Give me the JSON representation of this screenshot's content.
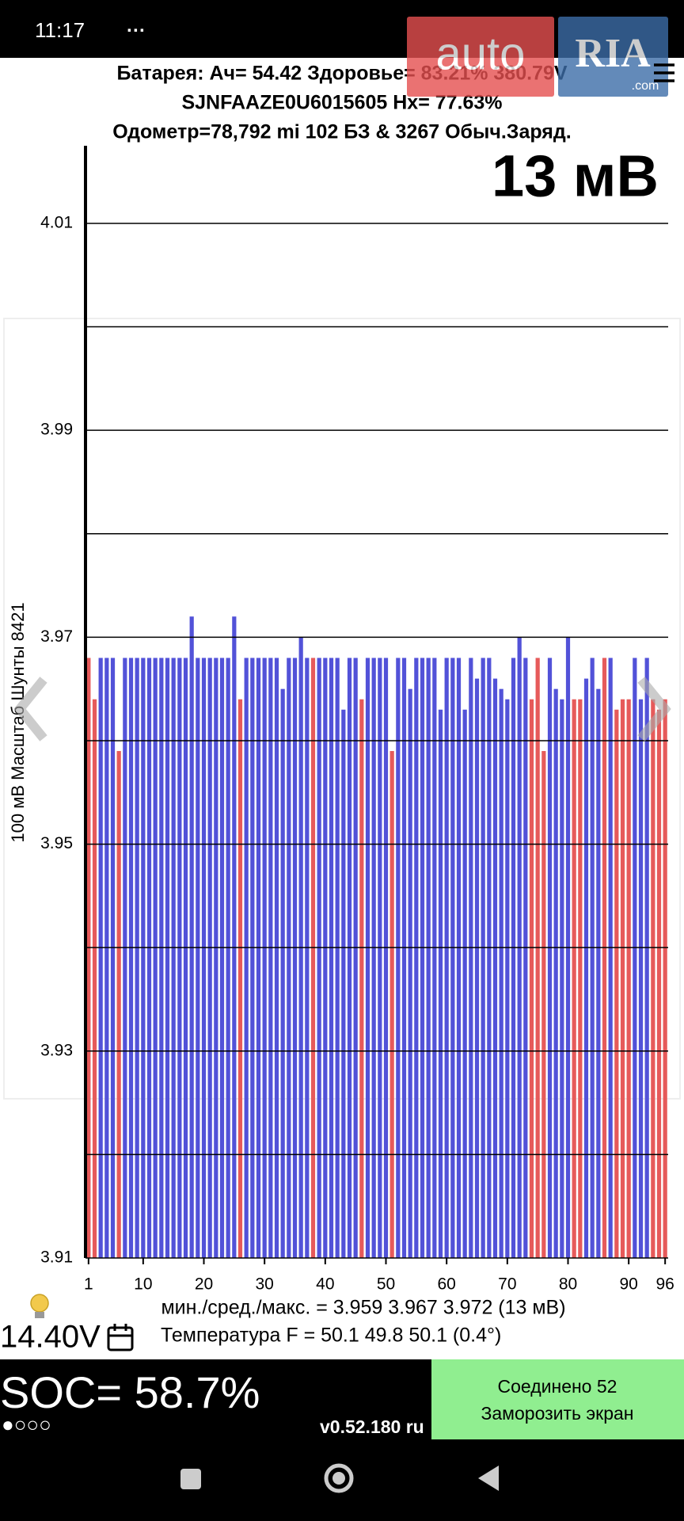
{
  "status_bar": {
    "time": "11:17",
    "more": "···"
  },
  "watermark": {
    "left": "auto",
    "right": "RIA",
    "suffix": ".com"
  },
  "header": {
    "line1": "Батарея:  Ач= 54.42  Здоровье= 83.21%  380.79V",
    "line2": "SJNFAAZE0U6015605  Hx= 77.63%",
    "line3": "Одометр=78,792 mi 102 БЗ & 3267 Обыч.Заряд."
  },
  "chart_data": {
    "type": "bar",
    "big_label": "13 мВ",
    "y_label": "100 мВ Масштаб  Шунты 8421",
    "x": [
      1,
      2,
      3,
      4,
      5,
      6,
      7,
      8,
      9,
      10,
      11,
      12,
      13,
      14,
      15,
      16,
      17,
      18,
      19,
      20,
      21,
      22,
      23,
      24,
      25,
      26,
      27,
      28,
      29,
      30,
      31,
      32,
      33,
      34,
      35,
      36,
      37,
      38,
      39,
      40,
      41,
      42,
      43,
      44,
      45,
      46,
      47,
      48,
      49,
      50,
      51,
      52,
      53,
      54,
      55,
      56,
      57,
      58,
      59,
      60,
      61,
      62,
      63,
      64,
      65,
      66,
      67,
      68,
      69,
      70,
      71,
      72,
      73,
      74,
      75,
      76,
      77,
      78,
      79,
      80,
      81,
      82,
      83,
      84,
      85,
      86,
      87,
      88,
      89,
      90,
      91,
      92,
      93,
      94,
      95,
      96
    ],
    "values": [
      3.968,
      3.964,
      3.968,
      3.968,
      3.968,
      3.959,
      3.968,
      3.968,
      3.968,
      3.968,
      3.968,
      3.968,
      3.968,
      3.968,
      3.968,
      3.968,
      3.968,
      3.972,
      3.968,
      3.968,
      3.968,
      3.968,
      3.968,
      3.968,
      3.972,
      3.964,
      3.968,
      3.968,
      3.968,
      3.968,
      3.968,
      3.968,
      3.965,
      3.968,
      3.968,
      3.97,
      3.968,
      3.968,
      3.968,
      3.968,
      3.968,
      3.968,
      3.963,
      3.968,
      3.968,
      3.964,
      3.968,
      3.968,
      3.968,
      3.968,
      3.959,
      3.968,
      3.968,
      3.965,
      3.968,
      3.968,
      3.968,
      3.968,
      3.963,
      3.968,
      3.968,
      3.968,
      3.963,
      3.968,
      3.966,
      3.968,
      3.968,
      3.966,
      3.965,
      3.964,
      3.968,
      3.97,
      3.968,
      3.964,
      3.968,
      3.959,
      3.968,
      3.965,
      3.964,
      3.97,
      3.964,
      3.964,
      3.966,
      3.968,
      3.965,
      3.968,
      3.968,
      3.963,
      3.964,
      3.964,
      3.968,
      3.964,
      3.968,
      3.964,
      3.963,
      3.964
    ],
    "colors": [
      "#e65a5a",
      "#e65a5a",
      "#5252d8",
      "#5252d8",
      "#5252d8",
      "#e65a5a",
      "#5252d8",
      "#5252d8",
      "#5252d8",
      "#5252d8",
      "#5252d8",
      "#5252d8",
      "#5252d8",
      "#5252d8",
      "#5252d8",
      "#5252d8",
      "#5252d8",
      "#5252d8",
      "#5252d8",
      "#5252d8",
      "#5252d8",
      "#5252d8",
      "#5252d8",
      "#5252d8",
      "#5252d8",
      "#e65a5a",
      "#5252d8",
      "#5252d8",
      "#5252d8",
      "#5252d8",
      "#5252d8",
      "#5252d8",
      "#5252d8",
      "#5252d8",
      "#5252d8",
      "#5252d8",
      "#5252d8",
      "#e65a5a",
      "#5252d8",
      "#5252d8",
      "#5252d8",
      "#5252d8",
      "#5252d8",
      "#5252d8",
      "#5252d8",
      "#e65a5a",
      "#5252d8",
      "#5252d8",
      "#5252d8",
      "#5252d8",
      "#e65a5a",
      "#5252d8",
      "#5252d8",
      "#5252d8",
      "#5252d8",
      "#5252d8",
      "#5252d8",
      "#5252d8",
      "#5252d8",
      "#5252d8",
      "#5252d8",
      "#5252d8",
      "#5252d8",
      "#5252d8",
      "#5252d8",
      "#5252d8",
      "#5252d8",
      "#5252d8",
      "#5252d8",
      "#5252d8",
      "#5252d8",
      "#5252d8",
      "#5252d8",
      "#e65a5a",
      "#e65a5a",
      "#e65a5a",
      "#5252d8",
      "#5252d8",
      "#5252d8",
      "#5252d8",
      "#e65a5a",
      "#e65a5a",
      "#5252d8",
      "#5252d8",
      "#5252d8",
      "#e65a5a",
      "#5252d8",
      "#e65a5a",
      "#e65a5a",
      "#e65a5a",
      "#5252d8",
      "#5252d8",
      "#5252d8",
      "#e65a5a",
      "#e65a5a",
      "#e65a5a"
    ],
    "xlim": [
      0.5,
      96.5
    ],
    "xticks": [
      1,
      10,
      20,
      30,
      40,
      50,
      60,
      70,
      80,
      90,
      96
    ],
    "ylim": [
      3.91,
      4.0175
    ],
    "yticks": [
      3.91,
      3.93,
      3.95,
      3.97,
      3.99,
      4.01
    ],
    "ygrid": [
      3.92,
      3.94,
      3.96,
      3.98,
      4.0
    ],
    "grid": true,
    "stats": "мин./сред./макс. = 3.959  3.967  3.972  (13 мВ)"
  },
  "footer": {
    "voltage": "14.40V",
    "temperature": "Температура F = 50.1  49.8  50.1  (0.4°)",
    "soc": "SOC= 58.7%",
    "dots": "●○○○",
    "version": "v0.52.180 ru",
    "button_line1": "Соединено 52",
    "button_line2": "Заморозить экран"
  }
}
